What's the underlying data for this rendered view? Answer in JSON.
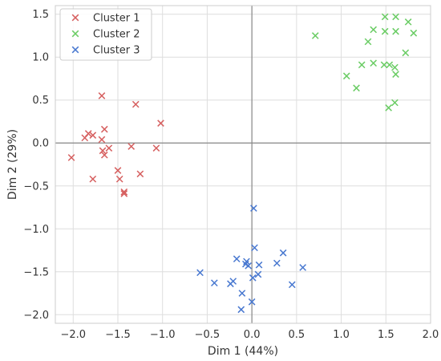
{
  "chart_data": {
    "type": "scatter",
    "title": "",
    "xlabel": "Dim 1 (44%)",
    "ylabel": "Dim 2 (29%)",
    "xlim": [
      -2.2,
      2.0
    ],
    "ylim": [
      -2.1,
      1.6
    ],
    "xticks": [
      -2.0,
      -1.5,
      -1.0,
      -0.5,
      0.0,
      0.5,
      1.0,
      1.5,
      2.0
    ],
    "yticks": [
      -2.0,
      -1.5,
      -1.0,
      -0.5,
      0.0,
      0.5,
      1.0,
      1.5
    ],
    "xtick_labels": [
      "−2.0",
      "−1.5",
      "−1.0",
      "−0.5",
      "0.0",
      "0.5",
      "1.0",
      "1.5",
      "2.0"
    ],
    "ytick_labels": [
      "−2.0",
      "−1.5",
      "−1.0",
      "−0.5",
      "0.0",
      "0.5",
      "1.0",
      "1.5"
    ],
    "grid": true,
    "zero_lines": true,
    "marker": "x",
    "legend_position": "top-left",
    "series": [
      {
        "name": "Cluster 1",
        "color": "#d65f5f",
        "points": [
          [
            -1.68,
            0.55
          ],
          [
            -1.3,
            0.45
          ],
          [
            -1.02,
            0.23
          ],
          [
            -1.83,
            0.11
          ],
          [
            -1.78,
            0.09
          ],
          [
            -1.87,
            0.06
          ],
          [
            -1.65,
            0.16
          ],
          [
            -1.68,
            0.04
          ],
          [
            -1.6,
            -0.06
          ],
          [
            -1.67,
            -0.09
          ],
          [
            -1.65,
            -0.14
          ],
          [
            -1.35,
            -0.04
          ],
          [
            -1.07,
            -0.06
          ],
          [
            -2.02,
            -0.17
          ],
          [
            -1.5,
            -0.32
          ],
          [
            -1.25,
            -0.36
          ],
          [
            -1.78,
            -0.42
          ],
          [
            -1.48,
            -0.42
          ],
          [
            -1.43,
            -0.57
          ],
          [
            -1.43,
            -0.59
          ]
        ]
      },
      {
        "name": "Cluster 2",
        "color": "#6acc64",
        "points": [
          [
            1.49,
            1.47
          ],
          [
            1.61,
            1.47
          ],
          [
            1.75,
            1.41
          ],
          [
            1.36,
            1.32
          ],
          [
            1.49,
            1.3
          ],
          [
            1.61,
            1.3
          ],
          [
            1.81,
            1.28
          ],
          [
            0.71,
            1.25
          ],
          [
            1.3,
            1.18
          ],
          [
            1.72,
            1.05
          ],
          [
            1.23,
            0.91
          ],
          [
            1.36,
            0.93
          ],
          [
            1.48,
            0.91
          ],
          [
            1.54,
            0.91
          ],
          [
            1.6,
            0.88
          ],
          [
            1.06,
            0.78
          ],
          [
            1.61,
            0.8
          ],
          [
            1.17,
            0.64
          ],
          [
            1.6,
            0.47
          ],
          [
            1.53,
            0.41
          ]
        ]
      },
      {
        "name": "Cluster 3",
        "color": "#4878d0",
        "points": [
          [
            0.02,
            -0.76
          ],
          [
            0.03,
            -1.22
          ],
          [
            0.35,
            -1.28
          ],
          [
            -0.17,
            -1.35
          ],
          [
            -0.06,
            -1.38
          ],
          [
            -0.07,
            -1.41
          ],
          [
            0.08,
            -1.42
          ],
          [
            0.28,
            -1.4
          ],
          [
            -0.04,
            -1.43
          ],
          [
            0.57,
            -1.45
          ],
          [
            -0.58,
            -1.51
          ],
          [
            0.07,
            -1.53
          ],
          [
            0.01,
            -1.57
          ],
          [
            -0.21,
            -1.61
          ],
          [
            -0.42,
            -1.63
          ],
          [
            -0.24,
            -1.64
          ],
          [
            0.45,
            -1.65
          ],
          [
            -0.11,
            -1.75
          ],
          [
            0.0,
            -1.85
          ],
          [
            -0.12,
            -1.94
          ]
        ]
      }
    ]
  }
}
